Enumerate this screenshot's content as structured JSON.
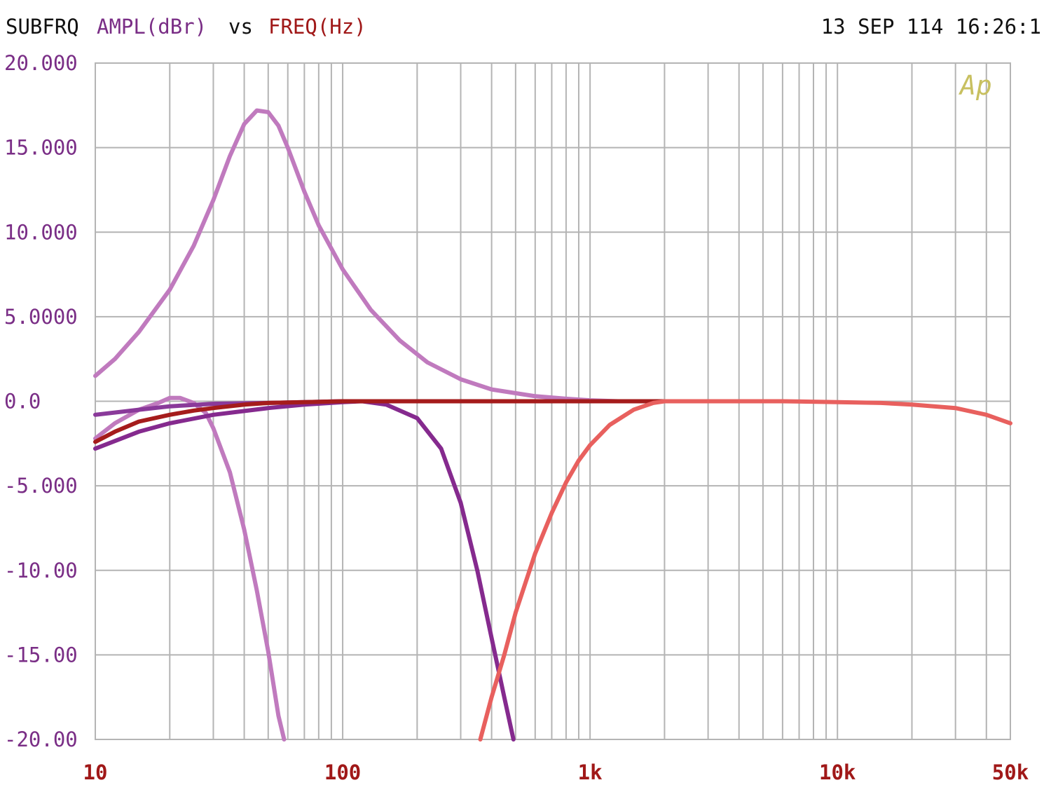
{
  "header": {
    "instrument": "SUBFRQ",
    "y_quantity": "AMPL(dBr)",
    "vs_word": "vs",
    "x_quantity": "FREQ(Hz)",
    "timestamp": "13 SEP 114 16:26:1",
    "logo": "Ap"
  },
  "colors": {
    "background": "#ffffff",
    "grid": "#b4b4b4",
    "text_dark": "#111111",
    "y_label": "#7a2e86",
    "x_label": "#a01818",
    "logo": "#c8c060"
  },
  "chart_data": {
    "type": "line",
    "title": "",
    "xlabel": "FREQ(Hz)",
    "ylabel": "AMPL(dBr)",
    "x_scale": "log",
    "xlim": [
      10,
      50000
    ],
    "ylim": [
      -20,
      20
    ],
    "grid": true,
    "legend": "none",
    "x_tick_labels": [
      {
        "value": 10,
        "label": "10"
      },
      {
        "value": 100,
        "label": "100"
      },
      {
        "value": 1000,
        "label": "1k"
      },
      {
        "value": 10000,
        "label": "10k"
      },
      {
        "value": 50000,
        "label": "50k"
      }
    ],
    "y_tick_labels": [
      {
        "value": 20,
        "label": "20.000"
      },
      {
        "value": 15,
        "label": "15.000"
      },
      {
        "value": 10,
        "label": "10.000"
      },
      {
        "value": 5,
        "label": "5.0000"
      },
      {
        "value": 0,
        "label": "0.0"
      },
      {
        "value": -5,
        "label": "-5.000"
      },
      {
        "value": -10,
        "label": "-10.00"
      },
      {
        "value": -15,
        "label": "-15.00"
      },
      {
        "value": -20,
        "label": "-20.00"
      }
    ],
    "series": [
      {
        "color": "#c07abe",
        "x": [
          10,
          12,
          15,
          20,
          25,
          30,
          35,
          40,
          45,
          50,
          55,
          60,
          70,
          80,
          100,
          130,
          170,
          220,
          300,
          400,
          600,
          800,
          1000,
          1300
        ],
        "values": [
          1.5,
          2.5,
          4.1,
          6.6,
          9.2,
          11.9,
          14.5,
          16.4,
          17.2,
          17.1,
          16.3,
          15.0,
          12.4,
          10.4,
          7.8,
          5.4,
          3.6,
          2.3,
          1.3,
          0.7,
          0.3,
          0.15,
          0.06,
          0.0
        ]
      },
      {
        "color": "#c07abe",
        "x": [
          10,
          12,
          15,
          18,
          20,
          22,
          25,
          28,
          30,
          35,
          40,
          45,
          50,
          55,
          58
        ],
        "values": [
          -2.2,
          -1.3,
          -0.5,
          -0.1,
          0.2,
          0.2,
          -0.1,
          -0.7,
          -1.6,
          -4.2,
          -7.6,
          -11.2,
          -14.8,
          -18.6,
          -20.0
        ]
      },
      {
        "color": "#852a8e",
        "x": [
          10,
          15,
          20,
          30,
          50,
          70,
          100,
          120,
          150,
          200,
          250,
          300,
          350,
          400,
          450,
          490
        ],
        "values": [
          -2.8,
          -1.8,
          -1.3,
          -0.8,
          -0.4,
          -0.2,
          -0.05,
          0.0,
          -0.2,
          -1.0,
          -2.8,
          -6.0,
          -10.0,
          -14.0,
          -17.5,
          -20.0
        ]
      },
      {
        "color": "#8a3a9a",
        "x": [
          10,
          15,
          20,
          30,
          50,
          70,
          100
        ],
        "values": [
          -0.8,
          -0.5,
          -0.3,
          -0.15,
          -0.1,
          -0.05,
          0.0
        ]
      },
      {
        "color": "#a51c1c",
        "x": [
          10,
          12,
          15,
          20,
          25,
          30,
          40,
          50,
          70,
          100,
          130,
          200,
          500,
          1000,
          2000,
          5000,
          6000
        ],
        "values": [
          -2.4,
          -1.8,
          -1.2,
          -0.8,
          -0.55,
          -0.4,
          -0.2,
          -0.1,
          -0.05,
          0.0,
          0.0,
          0.0,
          0.0,
          0.0,
          0.0,
          0.0,
          0.0
        ]
      },
      {
        "color": "#e8605e",
        "x": [
          360,
          400,
          450,
          500,
          600,
          700,
          800,
          900,
          1000,
          1200,
          1500,
          1800,
          2000,
          3000,
          6000,
          10000,
          15000,
          20000,
          30000,
          40000,
          50000
        ],
        "values": [
          -20.0,
          -17.5,
          -15.0,
          -12.5,
          -9.0,
          -6.6,
          -4.8,
          -3.5,
          -2.6,
          -1.4,
          -0.5,
          -0.1,
          0.0,
          0.0,
          0.0,
          -0.05,
          -0.1,
          -0.2,
          -0.4,
          -0.8,
          -1.3
        ]
      }
    ]
  }
}
